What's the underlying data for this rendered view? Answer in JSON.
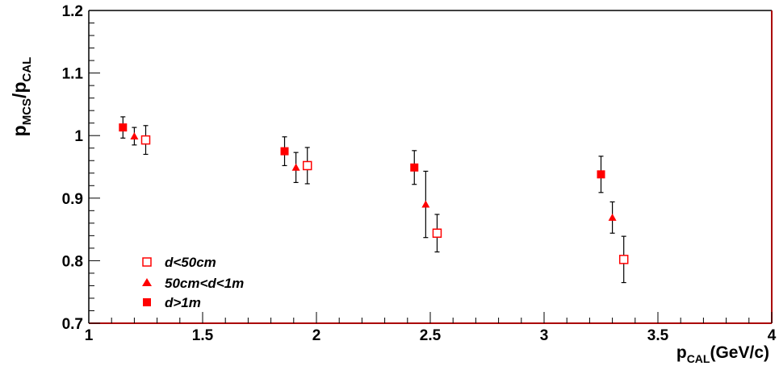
{
  "chart_data": {
    "type": "scatter",
    "xlabel": {
      "main": "p",
      "sub": "CAL",
      "suffix": "(GeV/c)"
    },
    "ylabel": {
      "main1": "p",
      "sub1": "MCS",
      "sep": "/p",
      "sub2": "CAL"
    },
    "xlim": [
      1,
      4
    ],
    "ylim": [
      0.7,
      1.2
    ],
    "x_ticks": [
      1,
      1.5,
      2,
      2.5,
      3,
      3.5,
      4
    ],
    "x_tick_labels": [
      "1",
      "1.5",
      "2",
      "2.5",
      "3",
      "3.5",
      "4"
    ],
    "y_ticks": [
      0.7,
      0.8,
      0.9,
      1.0,
      1.1,
      1.2
    ],
    "y_tick_labels": [
      "0.7",
      "0.8",
      "0.9",
      "1",
      "1.1",
      "1.2"
    ],
    "grid": false,
    "legend_position": "bottom-left",
    "series": [
      {
        "name": "d<50cm",
        "marker": "open-square",
        "color": "#ff0000",
        "points": [
          {
            "x": 1.25,
            "y": 0.993,
            "err": 0.023
          },
          {
            "x": 1.96,
            "y": 0.952,
            "err": 0.029
          },
          {
            "x": 2.53,
            "y": 0.844,
            "err": 0.03
          },
          {
            "x": 3.35,
            "y": 0.802,
            "err": 0.037
          }
        ]
      },
      {
        "name": "50cm<d<1m",
        "marker": "filled-triangle",
        "color": "#ff0000",
        "points": [
          {
            "x": 1.2,
            "y": 0.999,
            "err": 0.014
          },
          {
            "x": 1.91,
            "y": 0.949,
            "err": 0.024
          },
          {
            "x": 2.48,
            "y": 0.89,
            "err": 0.053
          },
          {
            "x": 3.3,
            "y": 0.869,
            "err": 0.025
          }
        ]
      },
      {
        "name": "d>1m",
        "marker": "filled-square",
        "color": "#ff0000",
        "points": [
          {
            "x": 1.15,
            "y": 1.013,
            "err": 0.017
          },
          {
            "x": 1.86,
            "y": 0.975,
            "err": 0.023
          },
          {
            "x": 2.43,
            "y": 0.949,
            "err": 0.027
          },
          {
            "x": 3.25,
            "y": 0.938,
            "err": 0.029
          }
        ]
      }
    ]
  }
}
